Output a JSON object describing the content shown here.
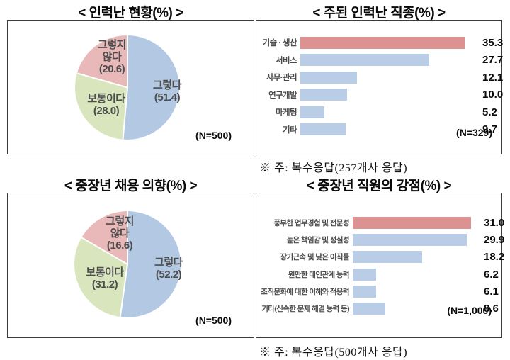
{
  "chart_data": [
    {
      "id": "pie-labor-shortage-status",
      "type": "pie",
      "title": "< 인력난 현황(%) >",
      "categories": [
        "그렇다",
        "보통이다",
        "그렇지 않다"
      ],
      "values": [
        51.4,
        28.0,
        20.6
      ],
      "colors": [
        "#b3c9e3",
        "#d9e6bd",
        "#e8b9b8"
      ],
      "slice_labels": [
        "그렇다\n(51.4)",
        "보통이다\n(28.0)",
        "그렇지\n않다\n(20.6)"
      ],
      "sample_label": "(N=500)",
      "legend_position": "inside"
    },
    {
      "id": "bar-main-shortage-jobs",
      "type": "bar",
      "orientation": "horizontal",
      "title": "< 주된 인력난 직종(%) >",
      "categories": [
        "기술 · 생산",
        "서비스",
        "사무·관리",
        "연구개발",
        "마케팅",
        "기타"
      ],
      "values": [
        35.3,
        27.7,
        12.1,
        10.0,
        5.2,
        9.7
      ],
      "value_labels": [
        "35.3",
        "27.7",
        "12.1",
        "10.0",
        "5.2",
        "9.7"
      ],
      "bar_colors": [
        "#dc9290",
        "#b9cee6",
        "#b9cee6",
        "#b9cee6",
        "#b9cee6",
        "#b9cee6"
      ],
      "xlim": [
        0,
        38
      ],
      "grid": false,
      "sample_label": "(N=329)",
      "note": "※ 주: 복수응답(257개사 응답)"
    },
    {
      "id": "pie-middle-aged-hiring-intention",
      "type": "pie",
      "title": "< 중장년 채용 의향(%) >",
      "categories": [
        "그렇다",
        "보통이다",
        "그렇지 않다"
      ],
      "values": [
        52.2,
        31.2,
        16.6
      ],
      "colors": [
        "#b3c9e3",
        "#d9e6bd",
        "#e8b9b8"
      ],
      "slice_labels": [
        "그렇다\n(52.2)",
        "보통이다\n(31.2)",
        "그렇지\n않다\n(16.6)"
      ],
      "sample_label": "(N=500)",
      "legend_position": "inside"
    },
    {
      "id": "bar-middle-aged-strengths",
      "type": "bar",
      "orientation": "horizontal",
      "title": "< 중장년 직원의 강점(%) >",
      "categories": [
        "풍부한 업무경험 및 전문성",
        "높은 책임감 및 성실성",
        "장기근속 및 낮은 이직률",
        "원만한 대인관계 능력",
        "조직문화에 대한 이해와 적응력",
        "기타(신속한 문제 해결 능력 등)"
      ],
      "values": [
        31.0,
        29.9,
        18.2,
        6.2,
        6.1,
        8.6
      ],
      "value_labels": [
        "31.0",
        "29.9",
        "18.2",
        "6.2",
        "6.1",
        "8.6"
      ],
      "bar_colors": [
        "#dc9290",
        "#b9cee6",
        "#b9cee6",
        "#b9cee6",
        "#b9cee6",
        "#b9cee6"
      ],
      "xlim": [
        0,
        33
      ],
      "grid": false,
      "sample_label": "(N=1,000)",
      "note": "※ 주: 복수응답(500개사 응답)"
    }
  ]
}
